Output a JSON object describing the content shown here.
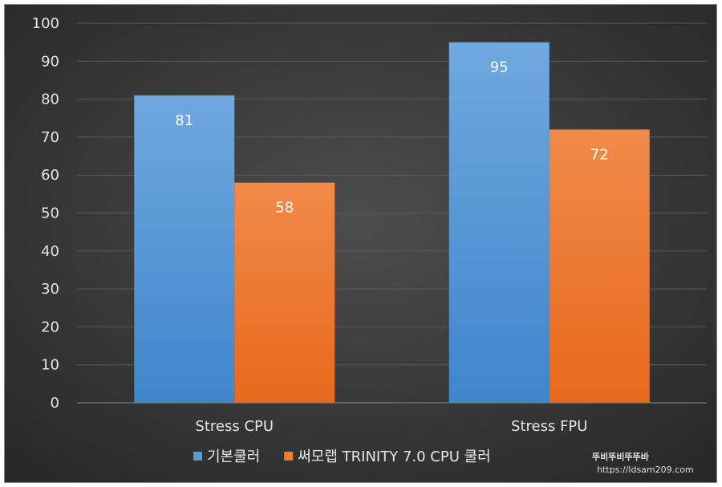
{
  "chart_data": {
    "type": "bar",
    "categories": [
      "Stress CPU",
      "Stress FPU"
    ],
    "series": [
      {
        "name": "기본쿨러",
        "values": [
          81,
          95
        ],
        "color": "#5b9bd5"
      },
      {
        "name": "써모랩 TRINITY 7.0 CPU 쿨러",
        "values": [
          58,
          72
        ],
        "color": "#ed7d31"
      }
    ],
    "ylim": [
      0,
      100
    ],
    "yticks": [
      0,
      10,
      20,
      30,
      40,
      50,
      60,
      70,
      80,
      90,
      100
    ],
    "grid": true,
    "legend": "bottom",
    "background": "#3a3a3a",
    "gridline_color": "#5a5a5a"
  },
  "watermark": {
    "logo_text": "뚜비뚜비뚜뚜바",
    "url": "https://ldsam209.com"
  }
}
